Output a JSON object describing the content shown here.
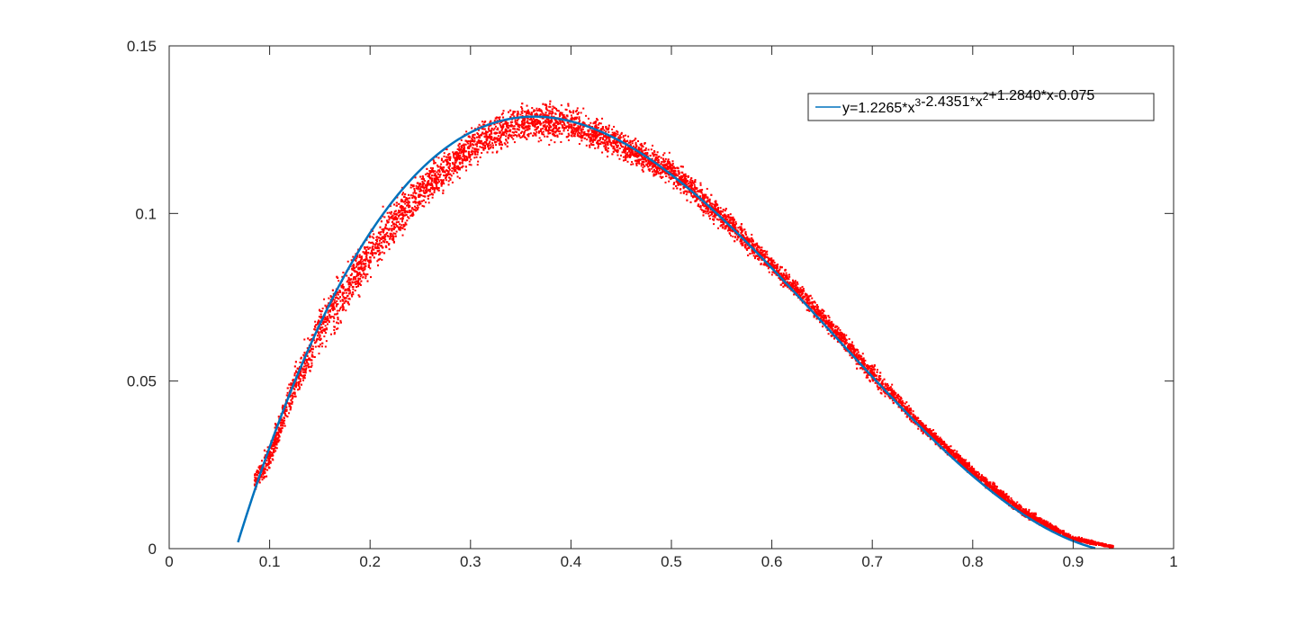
{
  "chart_data": {
    "type": "scatter",
    "title": "",
    "xlabel": "",
    "ylabel": "",
    "xlim": [
      0,
      1
    ],
    "ylim": [
      0,
      0.15
    ],
    "grid": false,
    "legend_position": "top-right",
    "x_ticks": [
      0,
      0.1,
      0.2,
      0.3,
      0.4,
      0.5,
      0.6,
      0.7,
      0.8,
      0.9,
      1
    ],
    "x_tick_labels": [
      "0",
      "0.1",
      "0.2",
      "0.3",
      "0.4",
      "0.5",
      "0.6",
      "0.7",
      "0.8",
      "0.9",
      "1"
    ],
    "y_ticks": [
      0,
      0.05,
      0.1,
      0.15
    ],
    "y_tick_labels": [
      "0",
      "0.05",
      "0.1",
      "0.15"
    ],
    "series": [
      {
        "type": "scatter",
        "color": "#ff0000",
        "x_range": [
          0.085,
          0.94
        ],
        "envelope": [
          {
            "x": 0.085,
            "low": 0.016,
            "high": 0.024
          },
          {
            "x": 0.1,
            "low": 0.022,
            "high": 0.033
          },
          {
            "x": 0.12,
            "low": 0.038,
            "high": 0.052
          },
          {
            "x": 0.15,
            "low": 0.055,
            "high": 0.075
          },
          {
            "x": 0.2,
            "low": 0.078,
            "high": 0.098
          },
          {
            "x": 0.25,
            "low": 0.098,
            "high": 0.115
          },
          {
            "x": 0.3,
            "low": 0.112,
            "high": 0.127
          },
          {
            "x": 0.35,
            "low": 0.12,
            "high": 0.135
          },
          {
            "x": 0.4,
            "low": 0.12,
            "high": 0.134
          },
          {
            "x": 0.45,
            "low": 0.115,
            "high": 0.126
          },
          {
            "x": 0.5,
            "low": 0.107,
            "high": 0.118
          },
          {
            "x": 0.55,
            "low": 0.094,
            "high": 0.104
          },
          {
            "x": 0.6,
            "low": 0.081,
            "high": 0.088
          },
          {
            "x": 0.65,
            "low": 0.066,
            "high": 0.073
          },
          {
            "x": 0.7,
            "low": 0.048,
            "high": 0.056
          },
          {
            "x": 0.75,
            "low": 0.034,
            "high": 0.039
          },
          {
            "x": 0.8,
            "low": 0.021,
            "high": 0.025
          },
          {
            "x": 0.85,
            "low": 0.009,
            "high": 0.013
          },
          {
            "x": 0.9,
            "low": 0.002,
            "high": 0.004
          },
          {
            "x": 0.94,
            "low": 0,
            "high": 0.001
          }
        ]
      },
      {
        "type": "line",
        "name": "y=1.2265*x^3-2.4351*x^2+1.2840*x-0.075",
        "color": "#0072bd",
        "x_range": [
          0.0685,
          0.922
        ],
        "coefficients": [
          1.2265,
          -2.4351,
          1.284,
          -0.075
        ]
      }
    ]
  }
}
